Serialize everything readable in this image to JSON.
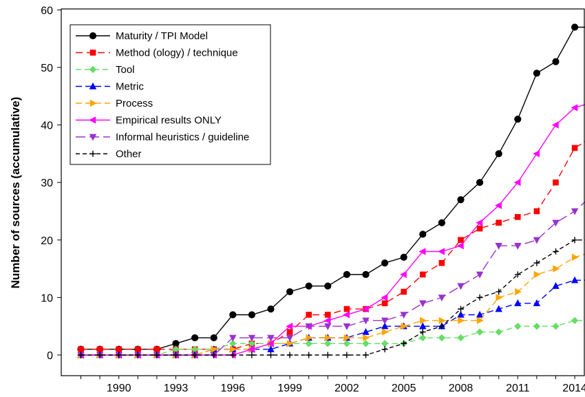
{
  "chart_data": {
    "type": "line",
    "title": "",
    "xlabel": "",
    "ylabel": "Number of sources (accumulative)",
    "xlim": [
      1987,
      2015
    ],
    "ylim": [
      0,
      60
    ],
    "xticks": [
      1990,
      1993,
      1996,
      1999,
      2002,
      2005,
      2008,
      2011,
      2014
    ],
    "yticks": [
      0,
      10,
      20,
      30,
      40,
      50,
      60
    ],
    "grid": false,
    "legend_position": "top-left",
    "x": [
      1988,
      1989,
      1990,
      1991,
      1992,
      1993,
      1994,
      1995,
      1996,
      1997,
      1998,
      1999,
      2000,
      2001,
      2002,
      2003,
      2004,
      2005,
      2006,
      2007,
      2008,
      2009,
      2010,
      2011,
      2012,
      2013,
      2014,
      2015
    ],
    "series": [
      {
        "name": "Maturity / TPI Model",
        "color": "#000000",
        "dash": "",
        "marker": "circle",
        "values": [
          1,
          1,
          1,
          1,
          1,
          2,
          3,
          3,
          7,
          7,
          8,
          11,
          12,
          12,
          14,
          14,
          16,
          17,
          21,
          23,
          27,
          30,
          35,
          41,
          49,
          51,
          57,
          57
        ]
      },
      {
        "name": "Method (ology) / technique",
        "color": "#ff0000",
        "dash": "10,6",
        "marker": "square",
        "values": [
          1,
          1,
          1,
          1,
          1,
          1,
          1,
          1,
          1,
          2,
          2,
          4,
          7,
          7,
          8,
          8,
          9,
          11,
          14,
          16,
          20,
          22,
          23,
          24,
          25,
          30,
          36,
          38
        ]
      },
      {
        "name": "Tool",
        "color": "#66dd66",
        "dash": "8,5",
        "marker": "diamond",
        "values": [
          0,
          0,
          0,
          0,
          0,
          1,
          1,
          1,
          2,
          2,
          2,
          2,
          2,
          2,
          2,
          2,
          2,
          2,
          3,
          3,
          3,
          4,
          4,
          5,
          5,
          5,
          6,
          6
        ]
      },
      {
        "name": "Metric",
        "color": "#0000ff",
        "dash": "9,5",
        "marker": "triangle-up",
        "values": [
          0,
          0,
          0,
          0,
          0,
          0,
          0,
          1,
          1,
          1,
          1,
          2,
          3,
          3,
          3,
          4,
          5,
          5,
          5,
          5,
          7,
          7,
          8,
          9,
          9,
          12,
          13,
          13
        ]
      },
      {
        "name": "Process",
        "color": "#ffa500",
        "dash": "9,5",
        "marker": "triangle-right",
        "values": [
          0,
          0,
          0,
          0,
          0,
          0,
          0,
          1,
          1,
          1,
          2,
          2,
          3,
          3,
          3,
          3,
          4,
          5,
          6,
          6,
          6,
          6,
          10,
          11,
          14,
          15,
          17,
          18
        ]
      },
      {
        "name": "Empirical results ONLY",
        "color": "#ff00ff",
        "dash": "",
        "marker": "triangle-left",
        "values": [
          0,
          0,
          0,
          0,
          0,
          0,
          0,
          0,
          0,
          1,
          2,
          5,
          5,
          6,
          7,
          8,
          10,
          14,
          18,
          18,
          19,
          23,
          26,
          30,
          35,
          40,
          43,
          44
        ]
      },
      {
        "name": "Informal heuristics / guideline",
        "color": "#9932cc",
        "dash": "14,6",
        "marker": "triangle-down",
        "values": [
          0,
          0,
          0,
          0,
          0,
          0,
          0,
          0,
          3,
          3,
          3,
          3,
          5,
          5,
          5,
          6,
          6,
          7,
          9,
          10,
          12,
          14,
          19,
          19,
          20,
          23,
          25,
          28
        ]
      },
      {
        "name": "Other",
        "color": "#000000",
        "dash": "6,4",
        "marker": "plus",
        "values": [
          0,
          0,
          0,
          0,
          0,
          0,
          0,
          0,
          0,
          0,
          0,
          0,
          0,
          0,
          0,
          0,
          1,
          2,
          4,
          5,
          8,
          10,
          11,
          14,
          16,
          18,
          20,
          20
        ]
      }
    ]
  }
}
